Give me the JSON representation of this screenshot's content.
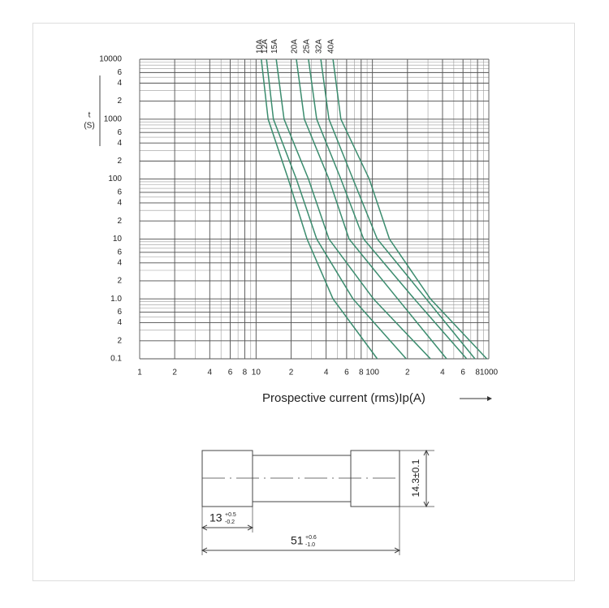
{
  "chart_data": {
    "type": "line",
    "log_x": true,
    "log_y": true,
    "grid": true,
    "x_label": "Prospective current (rms)Ip(A)",
    "y_label": "t",
    "y_unit": "(S)",
    "xlim": [
      1,
      1000
    ],
    "ylim": [
      0.1,
      10000
    ],
    "xticks": [
      1,
      {
        "value": 2,
        "label": "2"
      },
      4,
      6,
      8,
      10,
      {
        "value": 20,
        "label": "2"
      },
      {
        "value": 40,
        "label": "4"
      },
      {
        "value": 60,
        "label": "6"
      },
      {
        "value": 80,
        "label": "8"
      },
      100,
      {
        "value": 200,
        "label": "2"
      },
      {
        "value": 400,
        "label": "4"
      },
      {
        "value": 600,
        "label": "6"
      },
      {
        "value": 800,
        "label": "8"
      },
      1000
    ],
    "yticks": [
      10000,
      {
        "value": 6000,
        "label": "6"
      },
      {
        "value": 4000,
        "label": "4"
      },
      {
        "value": 2000,
        "label": "2"
      },
      1000,
      {
        "value": 600,
        "label": "6"
      },
      {
        "value": 400,
        "label": "4"
      },
      {
        "value": 200,
        "label": "2"
      },
      100,
      {
        "value": 60,
        "label": "6"
      },
      {
        "value": 40,
        "label": "4"
      },
      {
        "value": 20,
        "label": "2"
      },
      10,
      6,
      4,
      2,
      {
        "value": 1,
        "label": "1.0"
      },
      {
        "value": 0.6,
        "label": "6"
      },
      {
        "value": 0.4,
        "label": "4"
      },
      {
        "value": 0.2,
        "label": "2"
      },
      0.1
    ],
    "series": [
      {
        "name": "10A",
        "color": "#3b8c6e",
        "x": [
          11.1,
          12.7,
          18.9,
          27.4,
          45.8,
          110
        ],
        "values": [
          10000,
          1000,
          100,
          10,
          1,
          0.1
        ]
      },
      {
        "name": "12A",
        "color": "#3b8c6e",
        "x": [
          12.3,
          14.1,
          22.2,
          33.2,
          68,
          195
        ],
        "values": [
          10000,
          1000,
          100,
          10,
          1,
          0.1
        ]
      },
      {
        "name": "15A",
        "color": "#3b8c6e",
        "x": [
          14.9,
          17.4,
          28.2,
          42.3,
          102,
          315
        ],
        "values": [
          10000,
          1000,
          100,
          10,
          1,
          0.1
        ]
      },
      {
        "name": "20A",
        "color": "#3b8c6e",
        "x": [
          22.2,
          26,
          42.3,
          63,
          165,
          434
        ],
        "values": [
          10000,
          1000,
          100,
          10,
          1,
          0.1
        ]
      },
      {
        "name": "25A",
        "color": "#3b8c6e",
        "x": [
          28.2,
          33.2,
          53.6,
          84,
          229,
          645
        ],
        "values": [
          10000,
          1000,
          100,
          10,
          1,
          0.1
        ]
      },
      {
        "name": "32A",
        "color": "#3b8c6e",
        "x": [
          36,
          42.3,
          68,
          110,
          290,
          760
        ],
        "values": [
          10000,
          1000,
          100,
          10,
          1,
          0.1
        ]
      },
      {
        "name": "40A",
        "color": "#3b8c6e",
        "x": [
          45.8,
          53.6,
          94,
          140,
          315,
          960
        ],
        "values": [
          10000,
          1000,
          100,
          10,
          1,
          0.1
        ]
      }
    ]
  },
  "drawing": {
    "cap_length": "13",
    "cap_tol_plus": "+0.5",
    "cap_tol_minus": "-0.2",
    "length": "51",
    "length_tol_plus": "+0.6",
    "length_tol_minus": "-1.0",
    "diameter": "14.3±0.1"
  }
}
